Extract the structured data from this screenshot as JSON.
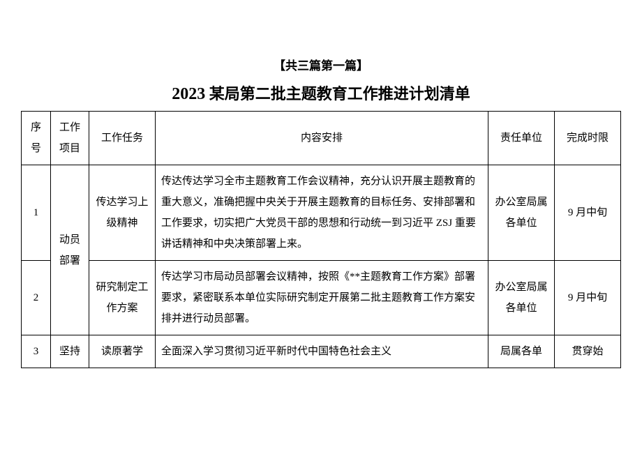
{
  "header_note": "【共三篇第一篇】",
  "title_year": "2023",
  "title_text": " 某局第二批主题教育工作推进计划清单",
  "columns": {
    "seq": "序号",
    "project": "工作项目",
    "task": "工作任务",
    "content": "内容安排",
    "responsible": "责任单位",
    "deadline": "完成时限"
  },
  "rows": [
    {
      "seq": "1",
      "project": "动员部署",
      "task": "传达学习上级精神",
      "content": "传达传达学习全市主题教育工作会议精神，充分认识开展主题教育的重大意义，准确把握中央关于开展主题教育的目标任务、安排部署和工作要求，切实把广大党员干部的思想和行动统一到习近平 ZSJ 重要讲话精神和中央决策部署上来。",
      "responsible": "办公室局属各单位",
      "deadline": "9 月中旬"
    },
    {
      "seq": "2",
      "task": "研究制定工作方案",
      "content": "传达学习市局动员部署会议精神，按照《**主题教育工作方案》部署要求，紧密联系本单位实际研究制定开展第二批主题教育工作方案安排并进行动员部署。",
      "responsible": "办公室局属各单位",
      "deadline": "9 月中旬"
    },
    {
      "seq": "3",
      "project": "坚持",
      "task": "读原著学",
      "content": "全面深入学习贯彻习近平新时代中国特色社会主义",
      "responsible": "局属各单",
      "deadline": "贯穿始"
    }
  ],
  "table_style": {
    "border_color": "#000000",
    "background_color": "#ffffff",
    "text_color": "#000000",
    "header_fontsize": 15,
    "cell_fontsize": 15,
    "line_height": 2.0
  }
}
